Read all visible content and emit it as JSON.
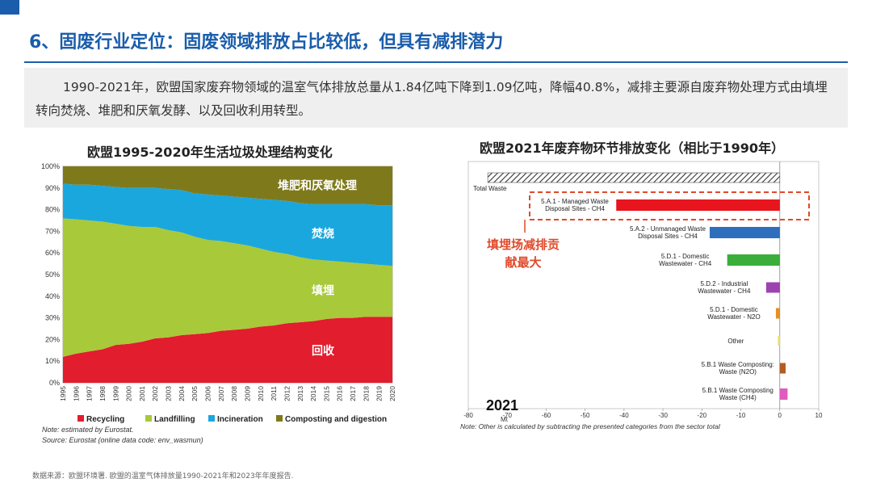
{
  "page": {
    "title": "6、固废行业定位：固废领域排放占比较低，但具有减排潜力",
    "intro": "1990-2021年，欧盟国家废弃物领域的温室气体排放总量从1.84亿吨下降到1.09亿吨，降幅40.8%，减排主要源自废弃物处理方式由填埋转向焚烧、堆肥和厌氧发酵、以及回收利用转型。",
    "source_footer": "数据来源：欧盟环境署. 欧盟的温室气体排放量1990-2021年和2023年年度报告."
  },
  "colors": {
    "accent": "#1a5dab",
    "recycling": "#e11d2e",
    "landfilling": "#a8c93a",
    "incineration": "#1aa7de",
    "composting": "#7e7a1c",
    "callout": "#e04a2a"
  },
  "chart_data": [
    {
      "type": "area",
      "stacked": true,
      "title": "欧盟1995-2020年生活垃圾处理结构变化",
      "x": [
        "1995",
        "1996",
        "1997",
        "1998",
        "1999",
        "2000",
        "2001",
        "2002",
        "2003",
        "2004",
        "2005",
        "2006",
        "2007",
        "2008",
        "2009",
        "2010",
        "2011",
        "2012",
        "2013",
        "2014",
        "2015",
        "2016",
        "2017",
        "2018",
        "2019",
        "2020"
      ],
      "ylim": [
        0,
        100
      ],
      "yticks": [
        "0%",
        "10%",
        "20%",
        "30%",
        "40%",
        "50%",
        "60%",
        "70%",
        "80%",
        "90%",
        "100%"
      ],
      "series": [
        {
          "name": "Recycling",
          "label": "回收",
          "color": "#e11d2e",
          "values": [
            12,
            13.5,
            14.5,
            15.5,
            17.5,
            18,
            19,
            20.5,
            21,
            22,
            22.5,
            23,
            24,
            24.5,
            25,
            26,
            26.5,
            27.5,
            28,
            28.5,
            29.5,
            30,
            30,
            30.5,
            30.5,
            30.5
          ]
        },
        {
          "name": "Landfilling",
          "label": "填埋",
          "color": "#a8c93a",
          "values": [
            64,
            62,
            60.5,
            59,
            56,
            54.5,
            53,
            51.5,
            49.5,
            47.5,
            45,
            43,
            41.5,
            40,
            38.5,
            36,
            34,
            32,
            30,
            28.5,
            27,
            26,
            25.5,
            24.5,
            24,
            23.5
          ]
        },
        {
          "name": "Incineration",
          "label": "焚烧",
          "color": "#1aa7de",
          "values": [
            16,
            16,
            16.5,
            16.5,
            17,
            17.5,
            18,
            18,
            19,
            19.5,
            20,
            21,
            21,
            21.5,
            22,
            23,
            24,
            24.5,
            25,
            25.5,
            26,
            26.5,
            27,
            27.5,
            27.5,
            28
          ]
        },
        {
          "name": "Composting and digestion",
          "label": "堆肥和厌氧处理",
          "color": "#7e7a1c",
          "values": [
            8,
            8.5,
            9,
            9,
            9.5,
            10,
            10,
            10,
            10.5,
            11,
            12.5,
            13,
            13.5,
            14,
            14.5,
            15,
            15.5,
            16,
            17,
            17.5,
            17.5,
            17.5,
            17.5,
            17.5,
            18,
            18
          ]
        }
      ],
      "notes": [
        "Note: estimated by Eurostat.",
        "Source: Eurostat (online data code: env_wasmun)"
      ]
    },
    {
      "type": "bar",
      "orientation": "horizontal",
      "title": "欧盟2021年废弃物环节排放变化（相比于1990年）",
      "year_label": "2021",
      "unit": "Mt",
      "xlim": [
        -80,
        10
      ],
      "xticks": [
        -80,
        -70,
        -60,
        -50,
        -40,
        -30,
        -20,
        -10,
        0,
        10
      ],
      "categories": [
        {
          "label": "Total Waste",
          "value": -75,
          "color": "#444444",
          "hatched": true
        },
        {
          "label": "5.A.1 - Managed Waste Disposal Sites - CH4",
          "value": -42,
          "color": "#e8141e"
        },
        {
          "label": "5.A.2 - Unmanaged Waste Disposal Sites - CH4",
          "value": -18,
          "color": "#2e6fbd"
        },
        {
          "label": "5.D.1 - Domestic Wastewater - CH4",
          "value": -13.5,
          "color": "#3aae3a"
        },
        {
          "label": "5.D.2 - Industrial Wastewater - CH4",
          "value": -3.5,
          "color": "#9b44b0"
        },
        {
          "label": "5.D.1 - Domestic Wastewater - N2O",
          "value": -1,
          "color": "#e88f1e"
        },
        {
          "label": "Other",
          "value": -0.5,
          "color": "#f0e26a"
        },
        {
          "label": "5.B.1 Waste Composting: Waste (N2O)",
          "value": 1.5,
          "color": "#b25e22"
        },
        {
          "label": "5.B.1 Waste Composting Waste (CH4)",
          "value": 2,
          "color": "#e05cbe"
        }
      ],
      "callout": "填埋场减排贡献最大",
      "note": "Note: Other is calculated by subtracting the presented categories from the sector total"
    }
  ]
}
